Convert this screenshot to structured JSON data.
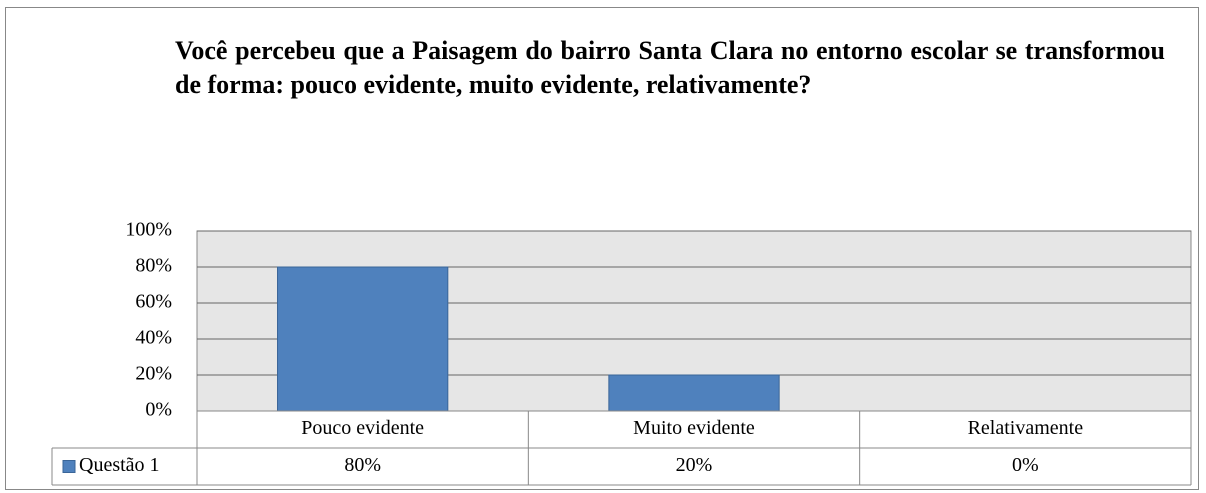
{
  "chart_data": {
    "type": "bar",
    "title": "Você percebeu que a Paisagem do bairro Santa Clara no entorno escolar se transformou de forma: pouco evidente, muito evidente, relativamente?",
    "categories": [
      "Pouco evidente",
      "Muito evidente",
      "Relativamente"
    ],
    "series": [
      {
        "name": "Questão 1",
        "color": "#4f81bd",
        "values": [
          80,
          20,
          0
        ],
        "value_labels": [
          "80%",
          "20%",
          "0%"
        ]
      }
    ],
    "ylim": [
      0,
      100
    ],
    "yticks": [
      {
        "value": 0,
        "label": "0%"
      },
      {
        "value": 20,
        "label": "20%"
      },
      {
        "value": 40,
        "label": "40%"
      },
      {
        "value": 60,
        "label": "60%"
      },
      {
        "value": 80,
        "label": "80%"
      },
      {
        "value": 100,
        "label": "100%"
      }
    ],
    "grid": true,
    "data_table": true
  }
}
